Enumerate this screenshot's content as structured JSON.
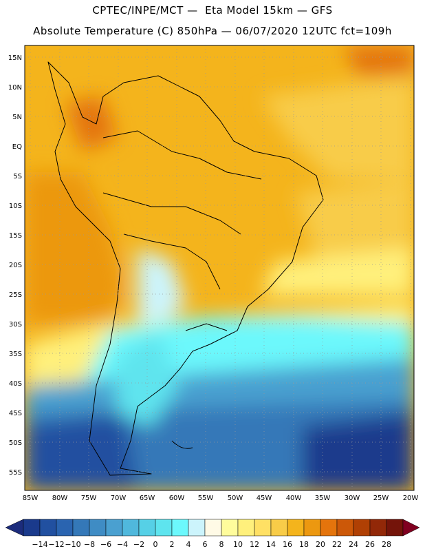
{
  "title_line1": "CPTEC/INPE/MCT —  Eta Model 15km — GFS",
  "title_line2": "Absolute Temperature (C) 850hPa — 06/07/2020 12UTC fct=109h",
  "lat_labels": [
    "15N",
    "10N",
    "5N",
    "EQ",
    "5S",
    "10S",
    "15S",
    "20S",
    "25S",
    "30S",
    "35S",
    "40S",
    "45S",
    "50S",
    "55S"
  ],
  "lon_labels": [
    "85W",
    "80W",
    "75W",
    "70W",
    "65W",
    "60W",
    "55W",
    "50W",
    "45W",
    "40W",
    "35W",
    "30W",
    "25W",
    "20W"
  ],
  "colorbar": {
    "labels": [
      "-14",
      "-12",
      "-10",
      "-8",
      "-6",
      "-4",
      "-2",
      "0",
      "2",
      "4",
      "6",
      "8",
      "10",
      "12",
      "14",
      "16",
      "18",
      "20",
      "22",
      "24",
      "26",
      "28"
    ],
    "colors": [
      "#1a3a8c",
      "#2150a0",
      "#2a64b0",
      "#3478b8",
      "#3f8cc4",
      "#4aa0d0",
      "#50b8dc",
      "#56d0e6",
      "#5ee4ee",
      "#6cf8fc",
      "#ccf4fc",
      "#fffae6",
      "#fffc9c",
      "#fff07c",
      "#ffe064",
      "#f8cc48",
      "#f4b41c",
      "#ec9810",
      "#e4740c",
      "#cc5808",
      "#b04004",
      "#922808",
      "#74140a"
    ],
    "under_color": "#1c2c7c",
    "over_color": "#800020"
  }
}
